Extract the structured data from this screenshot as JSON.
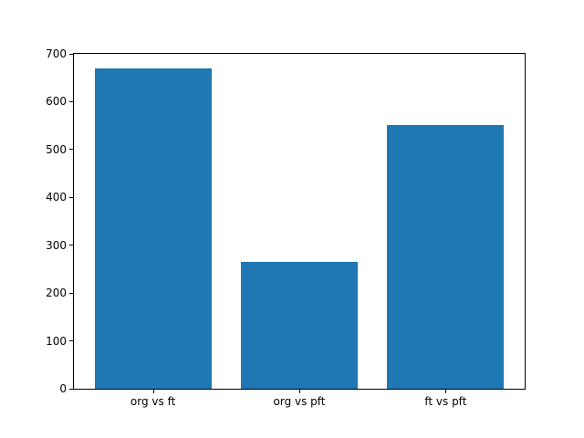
{
  "chart_data": {
    "type": "bar",
    "title": "",
    "xlabel": "",
    "ylabel": "",
    "categories": [
      "org vs ft",
      "org vs pft",
      "ft vs pft"
    ],
    "values": [
      670,
      265,
      552
    ],
    "bar_color": "#1f77b4",
    "bar_width": 0.8,
    "ylim": [
      0,
      700
    ],
    "yticks": [
      0,
      100,
      200,
      300,
      400,
      500,
      600,
      700
    ],
    "xlim": [
      -0.54,
      2.54
    ],
    "grid": false,
    "legend_position": "none",
    "spine_color": "#000000",
    "background_color": "#ffffff"
  }
}
